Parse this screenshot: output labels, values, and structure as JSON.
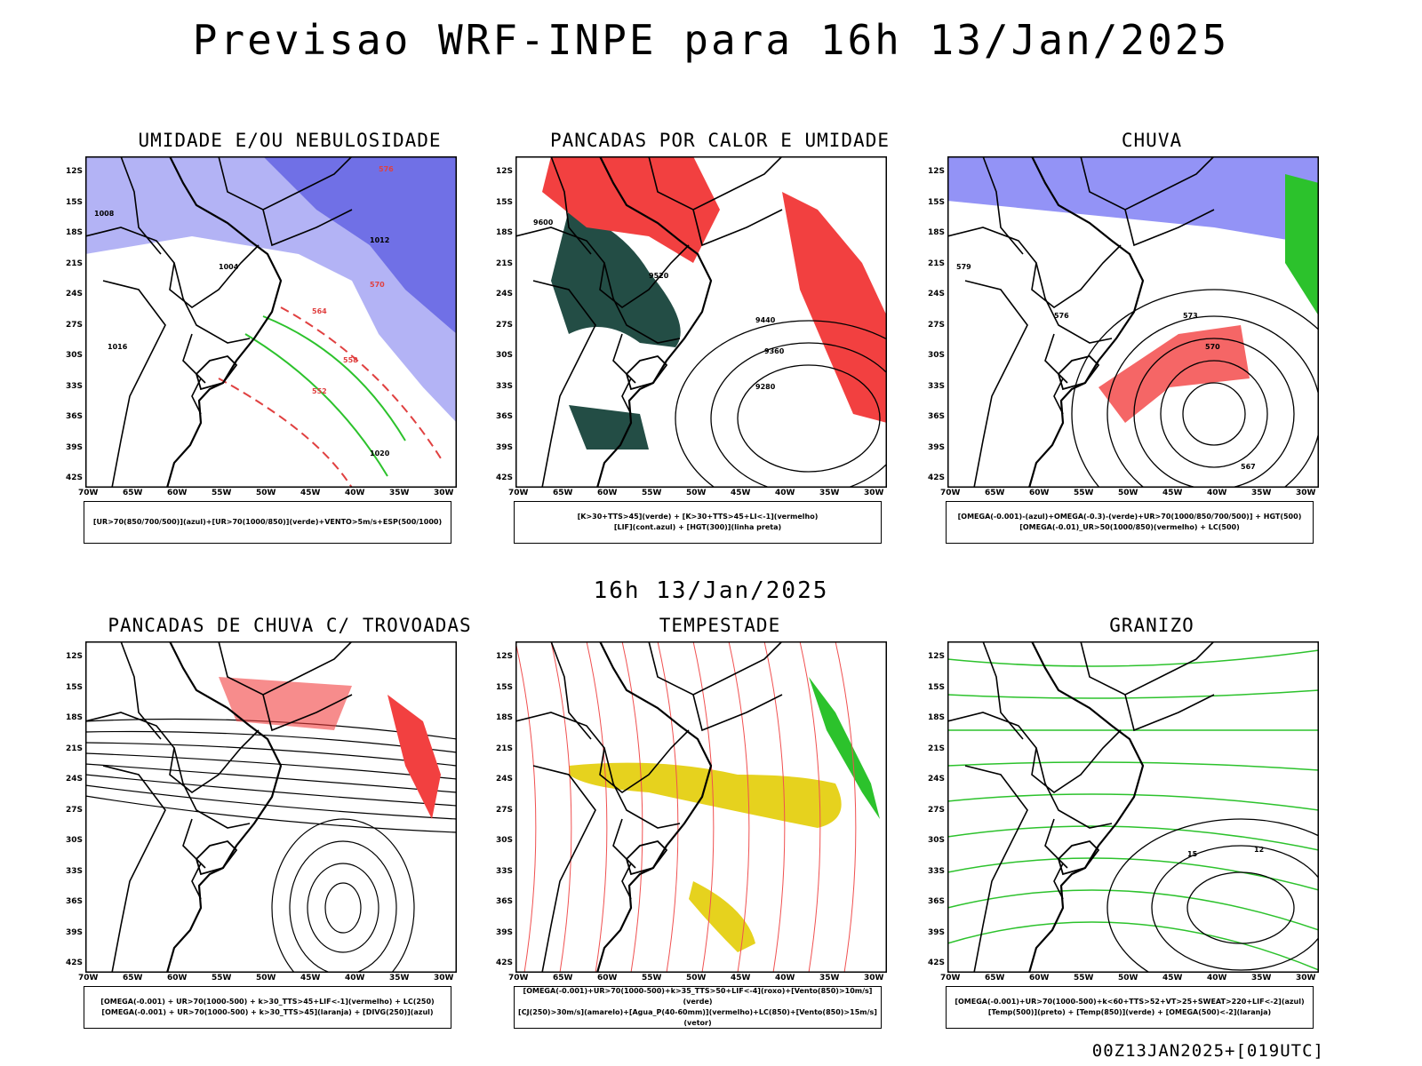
{
  "main_title": "Previsao WRF-INPE  para 16h 13/Jan/2025",
  "mid_title": "16h 13/Jan/2025",
  "footer": "00Z13JAN2025+[019UTC]",
  "lat_labels": [
    "12S",
    "15S",
    "18S",
    "21S",
    "24S",
    "27S",
    "30S",
    "33S",
    "36S",
    "39S",
    "42S"
  ],
  "lon_labels": [
    "70W",
    "65W",
    "60W",
    "55W",
    "50W",
    "45W",
    "40W",
    "35W",
    "30W"
  ],
  "panels": [
    {
      "title": "UMIDADE E/OU NEBULOSIDADE",
      "legend": [
        "[UR>70(850/700/500)](azul)+[UR>70(1000/850)](verde)+VENTO>5m/s+ESP(500/1000)"
      ]
    },
    {
      "title": "PANCADAS POR CALOR E UMIDADE",
      "legend": [
        "[K>30+TTS>45](verde) + [K>30+TTS>45+LI<-1](vermelho)",
        "[LIF](cont.azul) + [HGT(300)](linha preta)"
      ]
    },
    {
      "title": "CHUVA",
      "legend": [
        "[OMEGA(-0.001)-(azul)+OMEGA(-0.3)-(verde)+UR>70(1000/850/700/500)] + HGT(500)",
        "[OMEGA(-0.01)_UR>50(1000/850)(vermelho) + LC(500)"
      ]
    },
    {
      "title": "PANCADAS DE CHUVA C/ TROVOADAS",
      "legend": [
        "[OMEGA(-0.001) + UR>70(1000-500) + k>30_TTS>45+LIF<-1](vermelho) + LC(250)",
        "[OMEGA(-0.001) + UR>70(1000-500) + k>30_TTS>45](laranja) + [DIVG(250)](azul)"
      ]
    },
    {
      "title": "TEMPESTADE",
      "legend": [
        "[OMEGA(-0.001)+UR>70(1000-500)+k>35_TTS>50+LIF<-4](roxo)+[Vento(850)>10m/s](verde)",
        "[CJ(250)>30m/s](amarelo)+[Agua_P(40-60mm)](vermelho)+LC(850)+[Vento(850)>15m/s](vetor)"
      ]
    },
    {
      "title": "GRANIZO",
      "legend": [
        "[OMEGA(-0.001)+UR>70(1000-500)+k<60+TTS>52+VT>25+SWEAT>220+LIF<-2](azul)",
        "[Temp(500)](preto) + [Temp(850)](verde) + [OMEGA(500)<-2](laranja)"
      ]
    }
  ],
  "contour_labels": {
    "panel1": [
      "1008",
      "1004",
      "1012",
      "1016",
      "1020",
      "576",
      "570",
      "564",
      "558",
      "552"
    ],
    "panel2": [
      "9600",
      "9520",
      "9440",
      "9360",
      "9280"
    ],
    "panel3": [
      "579",
      "576",
      "573",
      "570",
      "567"
    ],
    "panel6": [
      "15",
      "12"
    ]
  }
}
